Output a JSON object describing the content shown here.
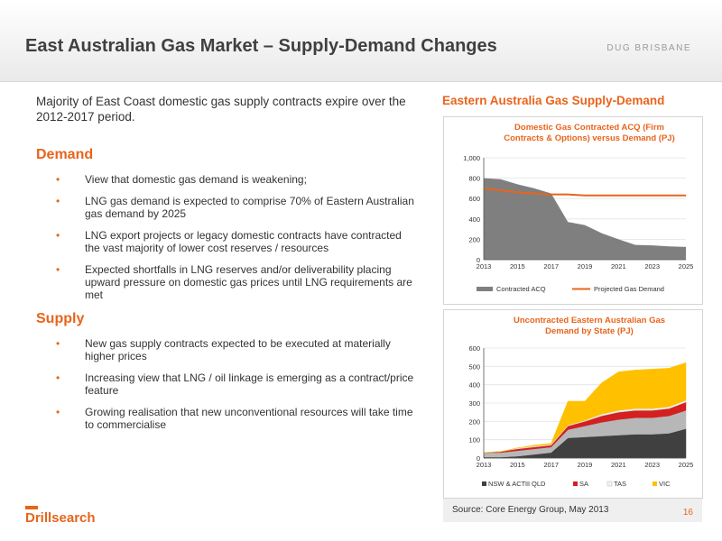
{
  "header": {
    "title": "East Australian Gas Market – Supply-Demand Changes",
    "tag": "DUG BRISBANE"
  },
  "intro": "Majority of East Coast domestic gas supply contracts expire over the 2012-2017 period.",
  "demand": {
    "heading": "Demand",
    "bullets": [
      "View that domestic gas demand is weakening;",
      "LNG gas demand is expected to comprise 70% of Eastern Australian gas demand by 2025",
      "LNG export projects or legacy domestic contracts have contracted the vast majority of lower cost reserves / resources",
      "Expected shortfalls in LNG reserves and/or deliverability placing upward pressure on domestic gas prices until LNG requirements are met"
    ]
  },
  "supply": {
    "heading": "Supply",
    "bullets": [
      "New gas supply contracts expected to be executed at materially higher prices",
      "Increasing view that LNG / oil linkage is emerging as a contract/price feature",
      "Growing realisation that new unconventional resources will take time to commercialise"
    ]
  },
  "right_title": "Eastern Australia Gas Supply-Demand",
  "source": "Source: Core Energy Group, May 2013",
  "page_number": "16",
  "logo": {
    "text": "Drillsearch",
    "color": "#e8641b"
  },
  "colors": {
    "accent": "#e8641b"
  },
  "chart_data": [
    {
      "type": "area",
      "title": "Domestic Gas Contracted ACQ (Firm Contracts & Options) versus Demand (PJ)",
      "x": [
        2013,
        2014,
        2015,
        2016,
        2017,
        2018,
        2019,
        2020,
        2021,
        2022,
        2023,
        2024,
        2025
      ],
      "xticks": [
        "2013",
        "2015",
        "2017",
        "2019",
        "2021",
        "2023",
        "2025"
      ],
      "yticks": [
        "0",
        "200",
        "400",
        "600",
        "800",
        "1,000"
      ],
      "ylim": [
        0,
        1000
      ],
      "series": [
        {
          "name": "Contracted ACQ",
          "type": "area",
          "color": "#7f7f7f",
          "values": [
            800,
            790,
            740,
            700,
            650,
            370,
            340,
            260,
            200,
            145,
            140,
            130,
            125
          ]
        },
        {
          "name": "Projected Gas Demand",
          "type": "line",
          "color": "#e8641b",
          "values": [
            700,
            680,
            660,
            650,
            640,
            640,
            630,
            630,
            630,
            630,
            630,
            630,
            630
          ]
        }
      ],
      "legend": "bottom"
    },
    {
      "type": "area",
      "title": "Uncontracted Eastern Australian Gas Demand by State (PJ)",
      "x": [
        2013,
        2014,
        2015,
        2016,
        2017,
        2018,
        2019,
        2020,
        2021,
        2022,
        2023,
        2024,
        2025
      ],
      "xticks": [
        "2013",
        "2015",
        "2017",
        "2019",
        "2021",
        "2023",
        "2025"
      ],
      "yticks": [
        "0",
        "100",
        "200",
        "300",
        "400",
        "500",
        "600"
      ],
      "ylim": [
        0,
        600
      ],
      "stacked": true,
      "series": [
        {
          "name": "NSW & ACT",
          "color": "#404040",
          "values": [
            5,
            5,
            10,
            20,
            30,
            110,
            115,
            120,
            125,
            130,
            130,
            135,
            160
          ]
        },
        {
          "name": "QLD",
          "color": "#b7b7b7",
          "values": [
            25,
            25,
            30,
            30,
            30,
            45,
            60,
            75,
            85,
            90,
            90,
            95,
            100
          ]
        },
        {
          "name": "SA",
          "color": "#d42020",
          "values": [
            0,
            5,
            10,
            10,
            10,
            20,
            25,
            35,
            40,
            40,
            40,
            40,
            45
          ]
        },
        {
          "name": "TAS",
          "color": "#f2f2f2",
          "values": [
            0,
            0,
            5,
            5,
            5,
            5,
            5,
            10,
            10,
            10,
            10,
            10,
            10
          ]
        },
        {
          "name": "VIC",
          "color": "#ffc000",
          "values": [
            0,
            0,
            0,
            5,
            5,
            130,
            105,
            170,
            210,
            210,
            215,
            210,
            205
          ]
        }
      ],
      "legend": "bottom"
    }
  ]
}
